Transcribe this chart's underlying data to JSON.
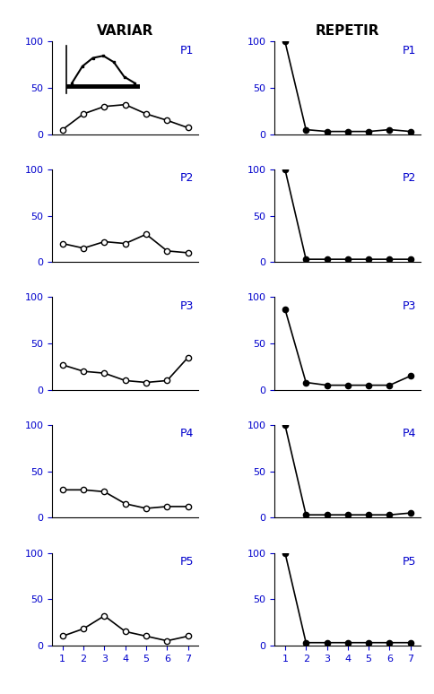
{
  "participants": [
    "P1",
    "P2",
    "P3",
    "P4",
    "P5"
  ],
  "x_ticks": [
    1,
    2,
    3,
    4,
    5,
    6,
    7
  ],
  "ylim": [
    0,
    100
  ],
  "y_ticks": [
    0,
    50,
    100
  ],
  "title_variar": "VARIAR",
  "title_repetir": "REPETIR",
  "label_color": "#0000cc",
  "line_color": "black",
  "variar_data": {
    "P1": [
      5,
      22,
      30,
      32,
      22,
      15,
      7
    ],
    "P2": [
      20,
      15,
      22,
      20,
      30,
      12,
      10
    ],
    "P3": [
      27,
      20,
      18,
      10,
      8,
      10,
      35
    ],
    "P4": [
      30,
      30,
      28,
      15,
      10,
      12,
      12
    ],
    "P5": [
      10,
      18,
      32,
      15,
      10,
      5,
      10
    ]
  },
  "repetir_data": {
    "P1": [
      100,
      5,
      3,
      3,
      3,
      5,
      3
    ],
    "P2": [
      100,
      3,
      3,
      3,
      3,
      3,
      3
    ],
    "P3": [
      87,
      8,
      5,
      5,
      5,
      5,
      15
    ],
    "P4": [
      100,
      3,
      3,
      3,
      3,
      3,
      5
    ],
    "P5": [
      100,
      3,
      3,
      3,
      3,
      3,
      3
    ]
  },
  "inset_x": [
    1,
    2,
    3,
    4,
    5,
    6,
    7
  ],
  "inset_y": [
    70,
    78,
    82,
    83,
    80,
    73,
    70
  ]
}
